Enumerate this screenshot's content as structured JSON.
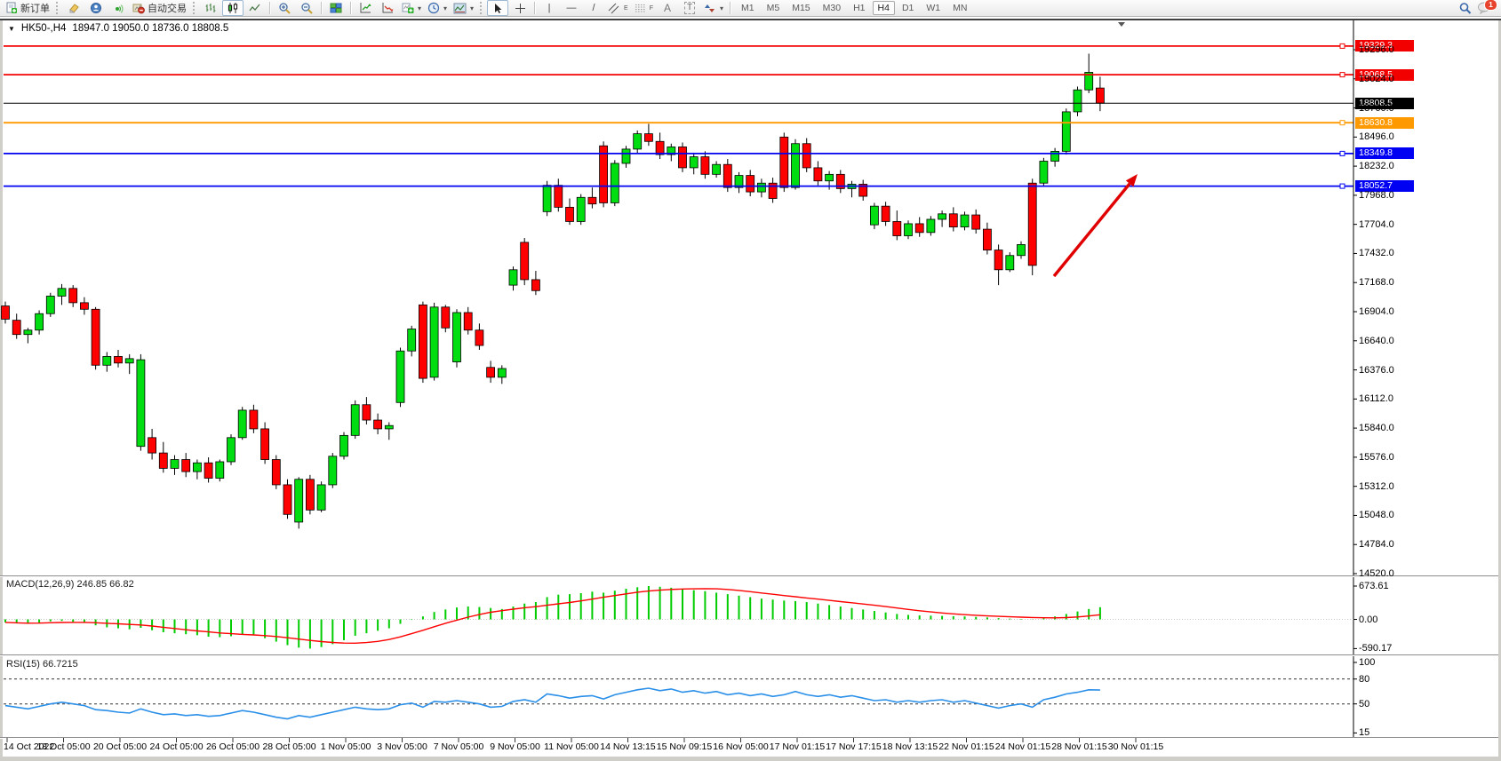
{
  "toolbar": {
    "new_order_label": "新订单",
    "auto_trading_label": "自动交易",
    "timeframes": [
      "M1",
      "M5",
      "M15",
      "M30",
      "H1",
      "H4",
      "D1",
      "W1",
      "MN"
    ],
    "active_timeframe": "H4",
    "notification_badge": "1",
    "glyphs": {
      "vline": "|",
      "hline": "—",
      "trendline": "/",
      "channel": "E",
      "fibonacci": "F",
      "text": "A",
      "label": "T",
      "dropdown": "▾"
    }
  },
  "window": {
    "collapse_glyph": "▼",
    "title_symbol": "HK50-,H4",
    "title_ohlc": "18947.0 19050.0 18736.0 18808.5"
  },
  "chart_data": {
    "type": "candlestick",
    "symbol": "HK50-",
    "timeframe": "H4",
    "up_color": "#00dd11",
    "down_color": "#ff0000",
    "last_bar": {
      "open": 18947.0,
      "high": 19050.0,
      "low": 18736.0,
      "close": 18808.5
    },
    "price_axis_ticks": [
      "19296.0",
      "19024.0",
      "18760.0",
      "18496.0",
      "18232.0",
      "17968.0",
      "17704.0",
      "17432.0",
      "17168.0",
      "16904.0",
      "16640.0",
      "16376.0",
      "16112.0",
      "15840.0",
      "15576.0",
      "15312.0",
      "15048.0",
      "14784.0",
      "14520.0"
    ],
    "levels": [
      {
        "label": "19329.3",
        "price": 19329.3,
        "color": "#f20000",
        "kind": "resistance"
      },
      {
        "label": "19068.5",
        "price": 19068.5,
        "color": "#f20000",
        "kind": "resistance"
      },
      {
        "label": "18808.5",
        "price": 18808.5,
        "color": "#000000",
        "kind": "current-price"
      },
      {
        "label": "18630.8",
        "price": 18630.8,
        "color": "#ff9900",
        "kind": "level"
      },
      {
        "label": "18349.8",
        "price": 18349.8,
        "color": "#0000f2",
        "kind": "support"
      },
      {
        "label": "18052.7",
        "price": 18052.7,
        "color": "#0000f2",
        "kind": "support"
      }
    ],
    "date_axis_ticks": [
      "14 Oct 2022",
      "18 Oct 05:00",
      "20 Oct 05:00",
      "24 Oct 05:00",
      "26 Oct 05:00",
      "28 Oct 05:00",
      "1 Nov 05:00",
      "3 Nov 05:00",
      "7 Nov 05:00",
      "9 Nov 05:00",
      "11 Nov 05:00",
      "14 Nov 13:15",
      "15 Nov 09:15",
      "16 Nov 05:00",
      "17 Nov 01:15",
      "17 Nov 17:15",
      "18 Nov 13:15",
      "22 Nov 01:15",
      "24 Nov 01:15",
      "28 Nov 01:15",
      "30 Nov 01:15"
    ],
    "candles_ohlc": [
      [
        16960,
        17000,
        16800,
        16840
      ],
      [
        16830,
        16890,
        16660,
        16700
      ],
      [
        16700,
        16760,
        16620,
        16740
      ],
      [
        16740,
        16920,
        16700,
        16890
      ],
      [
        16890,
        17080,
        16860,
        17050
      ],
      [
        17050,
        17160,
        16970,
        17120
      ],
      [
        17120,
        17150,
        16950,
        16990
      ],
      [
        16990,
        17040,
        16880,
        16930
      ],
      [
        16930,
        16950,
        16380,
        16420
      ],
      [
        16420,
        16540,
        16360,
        16500
      ],
      [
        16500,
        16560,
        16400,
        16440
      ],
      [
        16440,
        16520,
        16340,
        16480
      ],
      [
        15680,
        16520,
        15640,
        16470
      ],
      [
        15760,
        15840,
        15560,
        15620
      ],
      [
        15620,
        15720,
        15440,
        15480
      ],
      [
        15480,
        15600,
        15420,
        15560
      ],
      [
        15560,
        15620,
        15400,
        15450
      ],
      [
        15450,
        15560,
        15380,
        15530
      ],
      [
        15530,
        15580,
        15350,
        15390
      ],
      [
        15390,
        15560,
        15360,
        15540
      ],
      [
        15540,
        15790,
        15510,
        15760
      ],
      [
        15760,
        16040,
        15740,
        16010
      ],
      [
        16010,
        16060,
        15800,
        15840
      ],
      [
        15840,
        15900,
        15520,
        15560
      ],
      [
        15560,
        15600,
        15290,
        15330
      ],
      [
        15330,
        15380,
        15020,
        15060
      ],
      [
        14990,
        15400,
        14930,
        15380
      ],
      [
        15380,
        15420,
        15060,
        15100
      ],
      [
        15100,
        15360,
        15080,
        15330
      ],
      [
        15330,
        15620,
        15300,
        15590
      ],
      [
        15590,
        15810,
        15560,
        15780
      ],
      [
        15780,
        16100,
        15750,
        16060
      ],
      [
        16060,
        16130,
        15880,
        15920
      ],
      [
        15920,
        15980,
        15790,
        15840
      ],
      [
        15840,
        15900,
        15740,
        15870
      ],
      [
        16080,
        16580,
        16040,
        16550
      ],
      [
        16550,
        16780,
        16500,
        16750
      ],
      [
        16970,
        17000,
        16260,
        16300
      ],
      [
        16310,
        16990,
        16280,
        16950
      ],
      [
        16950,
        16970,
        16720,
        16760
      ],
      [
        16450,
        16930,
        16400,
        16900
      ],
      [
        16900,
        16950,
        16700,
        16740
      ],
      [
        16740,
        16800,
        16560,
        16600
      ],
      [
        16400,
        16460,
        16260,
        16310
      ],
      [
        16310,
        16420,
        16250,
        16390
      ],
      [
        17150,
        17320,
        17100,
        17290
      ],
      [
        17540,
        17580,
        17150,
        17200
      ],
      [
        17200,
        17280,
        17060,
        17100
      ],
      [
        17820,
        18100,
        17780,
        18060
      ],
      [
        18060,
        18120,
        17820,
        17860
      ],
      [
        17860,
        17940,
        17700,
        17730
      ],
      [
        17730,
        17980,
        17700,
        17950
      ],
      [
        17950,
        18040,
        17850,
        17890
      ],
      [
        18420,
        18460,
        17860,
        17900
      ],
      [
        17900,
        18290,
        17870,
        18260
      ],
      [
        18260,
        18420,
        18220,
        18390
      ],
      [
        18390,
        18560,
        18350,
        18530
      ],
      [
        18530,
        18620,
        18420,
        18460
      ],
      [
        18460,
        18540,
        18300,
        18340
      ],
      [
        18340,
        18440,
        18280,
        18410
      ],
      [
        18410,
        18450,
        18180,
        18220
      ],
      [
        18220,
        18350,
        18160,
        18320
      ],
      [
        18320,
        18370,
        18120,
        18160
      ],
      [
        18160,
        18280,
        18130,
        18250
      ],
      [
        18250,
        18300,
        18000,
        18040
      ],
      [
        18040,
        18180,
        17990,
        18150
      ],
      [
        18150,
        18200,
        17960,
        18000
      ],
      [
        18000,
        18120,
        17950,
        18080
      ],
      [
        18080,
        18130,
        17900,
        17940
      ],
      [
        18500,
        18540,
        18000,
        18040
      ],
      [
        18040,
        18480,
        18020,
        18440
      ],
      [
        18440,
        18490,
        18180,
        18220
      ],
      [
        18220,
        18280,
        18060,
        18100
      ],
      [
        18100,
        18190,
        18020,
        18160
      ],
      [
        18160,
        18200,
        17990,
        18030
      ],
      [
        18030,
        18100,
        17950,
        18070
      ],
      [
        18070,
        18110,
        17920,
        17960
      ],
      [
        17700,
        17900,
        17660,
        17870
      ],
      [
        17870,
        17910,
        17690,
        17730
      ],
      [
        17730,
        17830,
        17560,
        17600
      ],
      [
        17600,
        17740,
        17570,
        17710
      ],
      [
        17710,
        17770,
        17590,
        17630
      ],
      [
        17630,
        17780,
        17600,
        17750
      ],
      [
        17750,
        17830,
        17680,
        17800
      ],
      [
        17800,
        17860,
        17640,
        17680
      ],
      [
        17680,
        17820,
        17650,
        17790
      ],
      [
        17790,
        17840,
        17620,
        17660
      ],
      [
        17660,
        17720,
        17430,
        17470
      ],
      [
        17470,
        17520,
        17150,
        17290
      ],
      [
        17290,
        17450,
        17270,
        17420
      ],
      [
        17420,
        17550,
        17390,
        17520
      ],
      [
        18080,
        18120,
        17240,
        17330
      ],
      [
        18080,
        18310,
        18050,
        18280
      ],
      [
        18280,
        18400,
        18230,
        18370
      ],
      [
        18370,
        18760,
        18340,
        18730
      ],
      [
        18730,
        18960,
        18690,
        18930
      ],
      [
        18930,
        19260,
        18900,
        19090
      ],
      [
        18947,
        19050,
        18736,
        18808.5
      ]
    ],
    "annotation": {
      "type": "arrow",
      "color": "#e00000",
      "note": "upward arrow pointing toward support line"
    }
  },
  "macd": {
    "label": "MACD(12,26,9)",
    "values": "246.85 66.82",
    "axis_ticks": [
      "673.61",
      "0.00",
      "-590.17"
    ],
    "range": [
      -590.17,
      673.61
    ],
    "histogram_color": "#00cc00",
    "signal_color": "#ff0000",
    "histogram": [
      -60,
      -80,
      -90,
      -70,
      -40,
      -30,
      -50,
      -70,
      -120,
      -160,
      -180,
      -200,
      -170,
      -220,
      -260,
      -280,
      -300,
      -320,
      -350,
      -360,
      -340,
      -300,
      -320,
      -380,
      -450,
      -520,
      -570,
      -590.17,
      -560,
      -500,
      -420,
      -330,
      -280,
      -230,
      -180,
      -90,
      -10,
      60,
      150,
      200,
      240,
      260,
      250,
      230,
      210,
      260,
      320,
      350,
      450,
      500,
      510,
      530,
      560,
      540,
      580,
      620,
      650,
      673.61,
      660,
      640,
      610,
      590,
      570,
      540,
      510,
      480,
      450,
      420,
      400,
      380,
      370,
      350,
      320,
      290,
      260,
      230,
      200,
      170,
      140,
      110,
      90,
      80,
      75,
      70,
      65,
      60,
      50,
      40,
      25,
      15,
      10,
      5,
      20,
      60,
      110,
      160,
      210,
      246.85
    ]
  },
  "rsi": {
    "label": "RSI(15)",
    "value": "66.7215",
    "axis_ticks": [
      "100",
      "80",
      "50",
      "15"
    ],
    "levels": [
      80,
      50
    ],
    "line_color": "#2a8fe8",
    "values": [
      48,
      46,
      44,
      47,
      50,
      52,
      50,
      48,
      43,
      42,
      40,
      39,
      44,
      40,
      37,
      38,
      36,
      37,
      35,
      36,
      39,
      42,
      40,
      37,
      34,
      32,
      36,
      34,
      37,
      40,
      43,
      46,
      44,
      43,
      44,
      49,
      51,
      46,
      53,
      52,
      54,
      52,
      50,
      46,
      47,
      53,
      55,
      52,
      62,
      60,
      57,
      59,
      60,
      56,
      61,
      64,
      67,
      69,
      66,
      68,
      64,
      66,
      63,
      65,
      61,
      63,
      60,
      62,
      59,
      61,
      65,
      61,
      59,
      61,
      58,
      60,
      57,
      54,
      55,
      52,
      54,
      52,
      54,
      55,
      52,
      54,
      51,
      48,
      45,
      48,
      50,
      46,
      55,
      58,
      62,
      64,
      67,
      66.7215
    ]
  }
}
